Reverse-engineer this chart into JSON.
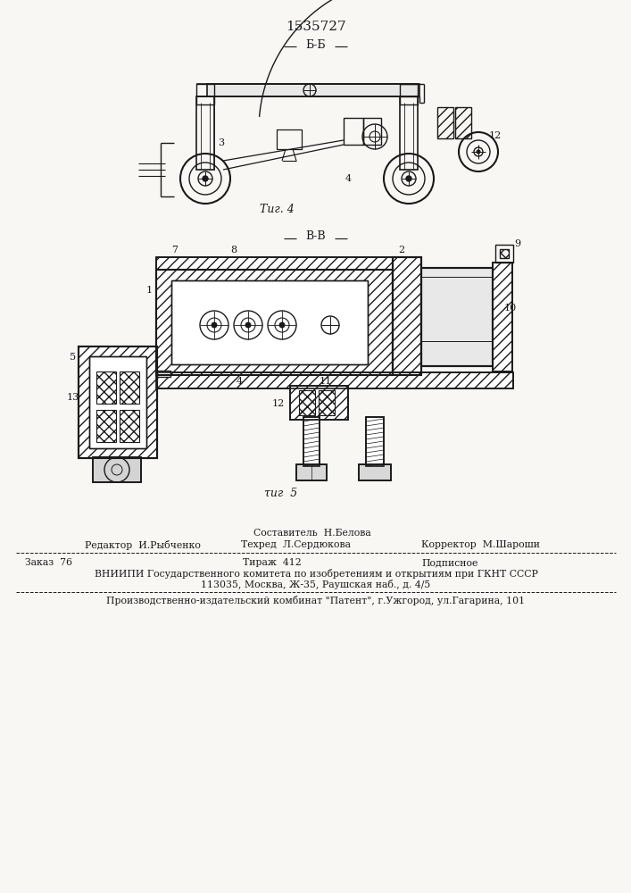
{
  "patent_number": "1535727",
  "bg_color": "#f8f7f4",
  "fig4_label": "Τиг. 4",
  "fig5_label": "τиг  5",
  "section_bb": "Б-Б",
  "section_vv": "В-В",
  "footer": {
    "col2_line1": "Составитель  Н.Белова",
    "col1_line2": "Редактор  И.Рыбченко",
    "col2_line2": "Техред  Л.Сердюкова",
    "col3_line2": "Корректор  М.Шароши",
    "col1_line3": "Заказ  76",
    "col2_line3": "Тираж  412",
    "col3_line3": "Подписное",
    "vniipi_line": "ВНИИПИ Государственного комитета по изобретениям и открытиям при ГКНТ СССР",
    "address_line": "113035, Москва, Ж-35, Раушская наб., д. 4/5",
    "publisher_line": "Производственно-издательский комбинат \"Патент\", г.Ужгород, ул.Гагарина, 101"
  },
  "text_color": "#1a1a1a",
  "line_color": "#1a1a1a"
}
